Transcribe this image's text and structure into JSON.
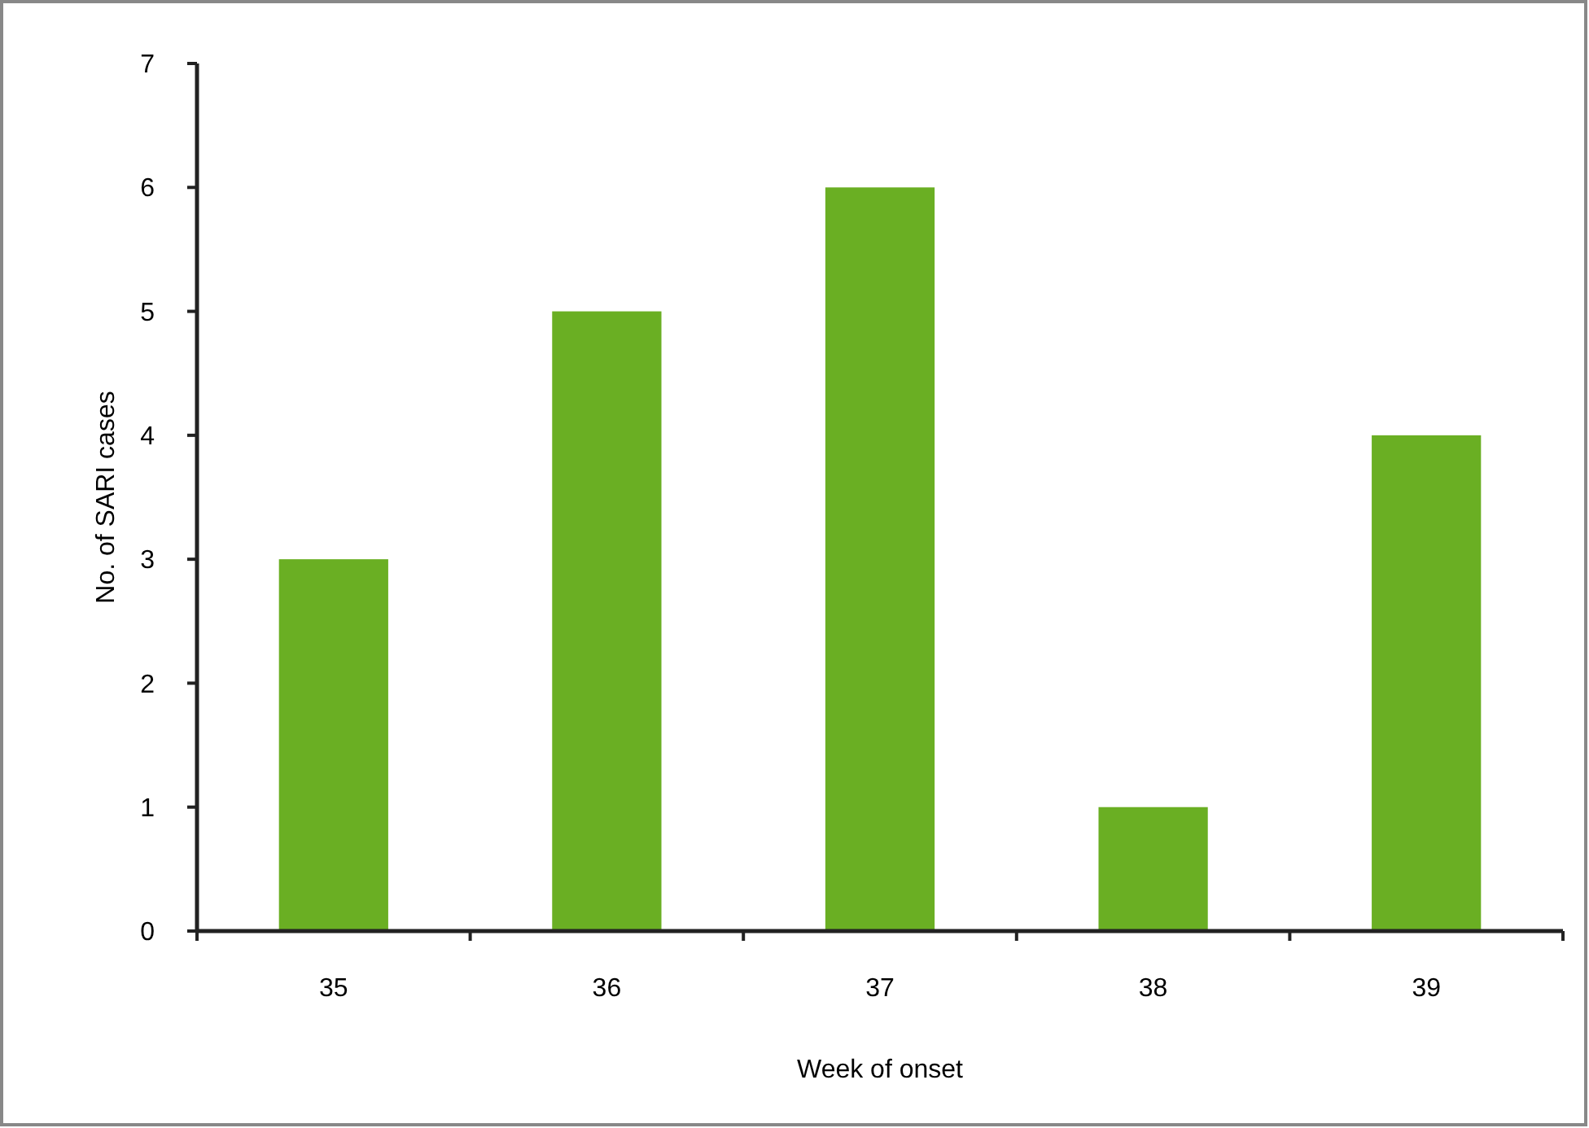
{
  "chart_data": {
    "type": "bar",
    "xlabel": "Week of onset",
    "ylabel": "No. of SARI cases",
    "categories": [
      "35",
      "36",
      "37",
      "38",
      "39"
    ],
    "values": [
      3,
      5,
      6,
      1,
      4
    ],
    "color": "#6aaf23",
    "ylim": [
      0,
      7
    ],
    "yticks": [
      0,
      1,
      2,
      3,
      4,
      5,
      6,
      7
    ],
    "grid": false
  }
}
